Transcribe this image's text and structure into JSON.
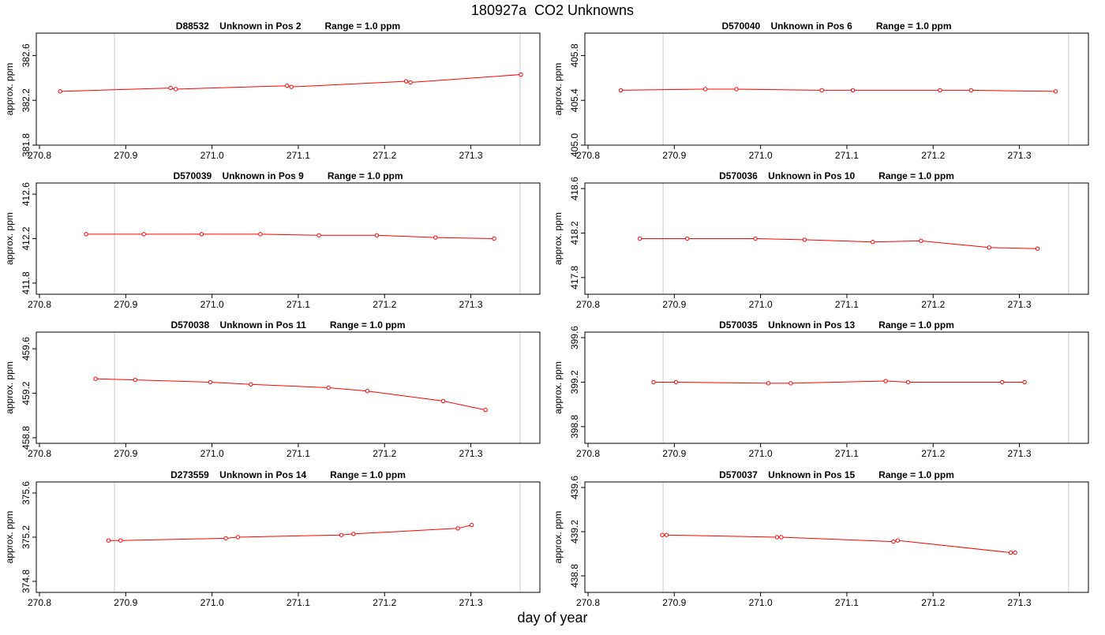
{
  "page": {
    "title": "180927a  CO2 Unknowns",
    "xlabel": "day of year"
  },
  "colors": {
    "series": "#ff0000",
    "marker_line": "#d3d3d3",
    "frame": "#000000"
  },
  "chart_data": [
    {
      "type": "line",
      "title": "D88532    Unknown in Pos 2         Range = 1.0 ppm",
      "ylabel": "approx. ppm",
      "xlim": [
        270.8,
        271.38
      ],
      "ylim": [
        381.8,
        382.8
      ],
      "xticks": [
        270.8,
        270.9,
        271.0,
        271.1,
        271.2,
        271.3
      ],
      "yticks": [
        381.8,
        382.2,
        382.6
      ],
      "vlines": [
        270.887,
        271.357
      ],
      "x": [
        270.824,
        270.952,
        270.958,
        271.087,
        271.092,
        271.225,
        271.23,
        271.358
      ],
      "y": [
        382.28,
        382.31,
        382.3,
        382.33,
        382.32,
        382.37,
        382.36,
        382.43
      ]
    },
    {
      "type": "line",
      "title": "D570040    Unknown in Pos 6         Range = 1.0 ppm",
      "ylabel": "approx. ppm",
      "xlim": [
        270.8,
        271.38
      ],
      "ylim": [
        405.0,
        406.0
      ],
      "xticks": [
        270.8,
        270.9,
        271.0,
        271.1,
        271.2,
        271.3
      ],
      "yticks": [
        405.0,
        405.4,
        405.8
      ],
      "vlines": [
        270.887,
        271.357
      ],
      "x": [
        270.838,
        270.936,
        270.972,
        271.071,
        271.107,
        271.208,
        271.244,
        271.342
      ],
      "y": [
        405.49,
        405.5,
        405.5,
        405.49,
        405.49,
        405.49,
        405.49,
        405.48
      ]
    },
    {
      "type": "line",
      "title": "D570039    Unknown in Pos 9         Range = 1.0 ppm",
      "ylabel": "approx. ppm",
      "xlim": [
        270.8,
        271.38
      ],
      "ylim": [
        411.7,
        412.7
      ],
      "xticks": [
        270.8,
        270.9,
        271.0,
        271.1,
        271.2,
        271.3
      ],
      "yticks": [
        411.8,
        412.2,
        412.6
      ],
      "vlines": [
        270.887,
        271.357
      ],
      "x": [
        270.854,
        270.921,
        270.988,
        271.056,
        271.124,
        271.191,
        271.259,
        271.327
      ],
      "y": [
        412.24,
        412.24,
        412.24,
        412.24,
        412.23,
        412.23,
        412.21,
        412.2
      ]
    },
    {
      "type": "line",
      "title": "D570036    Unknown in Pos 10         Range = 1.0 ppm",
      "ylabel": "approx. ppm",
      "xlim": [
        270.8,
        271.38
      ],
      "ylim": [
        417.65,
        418.65
      ],
      "xticks": [
        270.8,
        270.9,
        271.0,
        271.1,
        271.2,
        271.3
      ],
      "yticks": [
        417.8,
        418.2,
        418.6
      ],
      "vlines": [
        270.887,
        271.357
      ],
      "x": [
        270.86,
        270.915,
        270.994,
        271.051,
        271.13,
        271.186,
        271.265,
        271.321
      ],
      "y": [
        418.15,
        418.15,
        418.15,
        418.14,
        418.12,
        418.13,
        418.07,
        418.06
      ]
    },
    {
      "type": "line",
      "title": "D570038    Unknown in Pos 11         Range = 1.0 ppm",
      "ylabel": "approx. ppm",
      "xlim": [
        270.8,
        271.38
      ],
      "ylim": [
        458.75,
        459.75
      ],
      "xticks": [
        270.8,
        270.9,
        271.0,
        271.1,
        271.2,
        271.3
      ],
      "yticks": [
        458.8,
        459.2,
        459.6
      ],
      "vlines": [
        270.887,
        271.357
      ],
      "x": [
        270.865,
        270.911,
        270.998,
        271.045,
        271.135,
        271.18,
        271.268,
        271.317
      ],
      "y": [
        459.33,
        459.32,
        459.3,
        459.28,
        459.25,
        459.22,
        459.13,
        459.05
      ]
    },
    {
      "type": "line",
      "title": "D570035    Unknown in Pos 13         Range = 1.0 ppm",
      "ylabel": "approx. ppm",
      "xlim": [
        270.8,
        271.38
      ],
      "ylim": [
        398.65,
        399.65
      ],
      "xticks": [
        270.8,
        270.9,
        271.0,
        271.1,
        271.2,
        271.3
      ],
      "yticks": [
        398.8,
        399.2,
        399.6
      ],
      "vlines": [
        270.887,
        271.357
      ],
      "x": [
        270.876,
        270.902,
        271.009,
        271.035,
        271.145,
        271.171,
        271.28,
        271.306
      ],
      "y": [
        399.2,
        399.2,
        399.19,
        399.19,
        399.21,
        399.2,
        399.2,
        399.2
      ]
    },
    {
      "type": "line",
      "title": "D273559    Unknown in Pos 14         Range = 1.0 ppm",
      "ylabel": "approx. ppm",
      "xlim": [
        270.8,
        271.38
      ],
      "ylim": [
        374.7,
        375.7
      ],
      "xticks": [
        270.8,
        270.9,
        271.0,
        271.1,
        271.2,
        271.3
      ],
      "yticks": [
        374.8,
        375.2,
        375.6
      ],
      "vlines": [
        270.887,
        271.357
      ],
      "x": [
        270.88,
        270.894,
        271.016,
        271.03,
        271.15,
        271.164,
        271.285,
        271.301
      ],
      "y": [
        375.17,
        375.17,
        375.19,
        375.2,
        375.22,
        375.23,
        375.28,
        375.31
      ]
    },
    {
      "type": "line",
      "title": "D570037    Unknown in Pos 15         Range = 1.0 ppm",
      "ylabel": "approx. ppm",
      "xlim": [
        270.8,
        271.38
      ],
      "ylim": [
        438.65,
        439.65
      ],
      "xticks": [
        270.8,
        270.9,
        271.0,
        271.1,
        271.2,
        271.3
      ],
      "yticks": [
        438.8,
        439.2,
        439.6
      ],
      "vlines": [
        270.887,
        271.357
      ],
      "x": [
        270.886,
        270.891,
        271.019,
        271.024,
        271.154,
        271.159,
        271.29,
        271.295
      ],
      "y": [
        439.17,
        439.17,
        439.15,
        439.15,
        439.11,
        439.12,
        439.01,
        439.01
      ]
    }
  ]
}
